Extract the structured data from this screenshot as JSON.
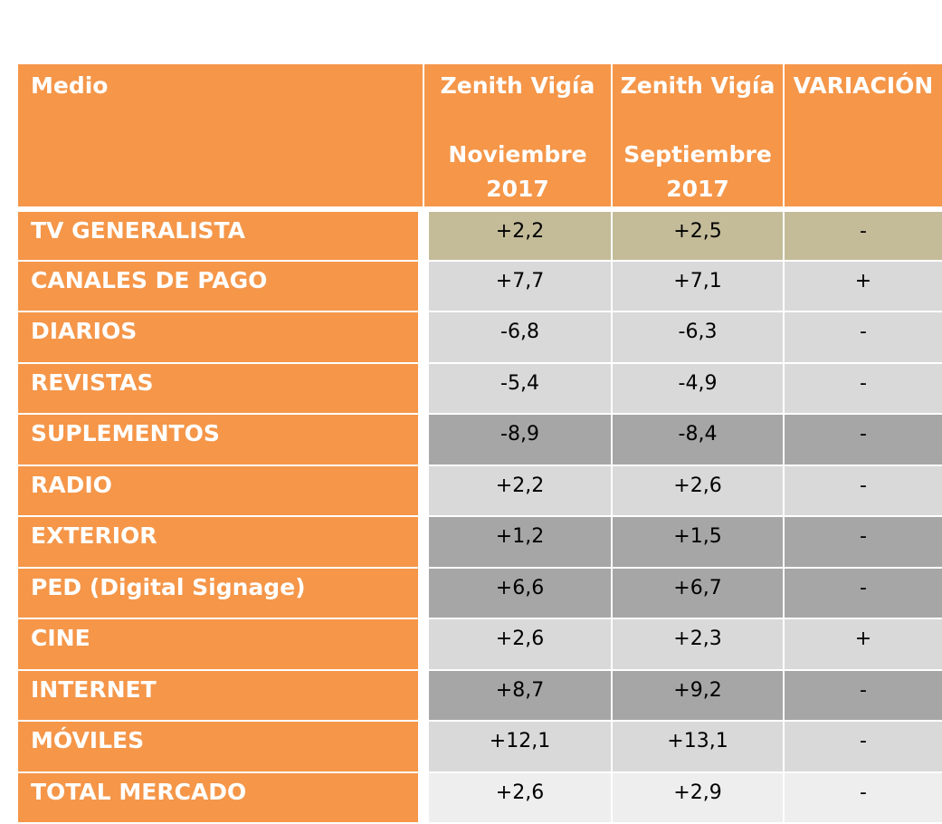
{
  "header": {
    "medio": "Medio",
    "col_nov_line1": "Zenith Vigía",
    "col_nov_line2": "Noviembre",
    "col_nov_line3": "2017",
    "col_sep_line1": "Zenith Vigía",
    "col_sep_line2": "Septiembre",
    "col_sep_line3": "2017",
    "variacion": "VARIACIÓN"
  },
  "colors": {
    "header_orange": "#f59649",
    "khaki": "#c4bc99",
    "light_gray": "#d9d9d9",
    "dark_gray": "#a6a6a6",
    "pale_gray": "#eeeeee"
  },
  "rows": [
    {
      "medio": "TV GENERALISTA",
      "nov": "+2,2",
      "sep": "+2,5",
      "var": "-",
      "shade": "khaki"
    },
    {
      "medio": "CANALES DE PAGO",
      "nov": "+7,7",
      "sep": "+7,1",
      "var": "+",
      "shade": "light_gray"
    },
    {
      "medio": "DIARIOS",
      "nov": "-6,8",
      "sep": "-6,3",
      "var": "-",
      "shade": "light_gray"
    },
    {
      "medio": "REVISTAS",
      "nov": "-5,4",
      "sep": "-4,9",
      "var": "-",
      "shade": "light_gray"
    },
    {
      "medio": "SUPLEMENTOS",
      "nov": "-8,9",
      "sep": "-8,4",
      "var": "-",
      "shade": "dark_gray"
    },
    {
      "medio": "RADIO",
      "nov": "+2,2",
      "sep": "+2,6",
      "var": "-",
      "shade": "light_gray"
    },
    {
      "medio": "EXTERIOR",
      "nov": "+1,2",
      "sep": "+1,5",
      "var": "-",
      "shade": "dark_gray"
    },
    {
      "medio": "PED (Digital Signage)",
      "nov": "+6,6",
      "sep": "+6,7",
      "var": "-",
      "shade": "dark_gray"
    },
    {
      "medio": "CINE",
      "nov": "+2,6",
      "sep": "+2,3",
      "var": "+",
      "shade": "light_gray"
    },
    {
      "medio": "INTERNET",
      "nov": "+8,7",
      "sep": "+9,2",
      "var": "-",
      "shade": "dark_gray"
    },
    {
      "medio": "MÓVILES",
      "nov": "+12,1",
      "sep": "+13,1",
      "var": "-",
      "shade": "light_gray"
    },
    {
      "medio": "TOTAL MERCADO",
      "nov": "+2,6",
      "sep": "+2,9",
      "var": "-",
      "shade": "pale_gray"
    }
  ]
}
